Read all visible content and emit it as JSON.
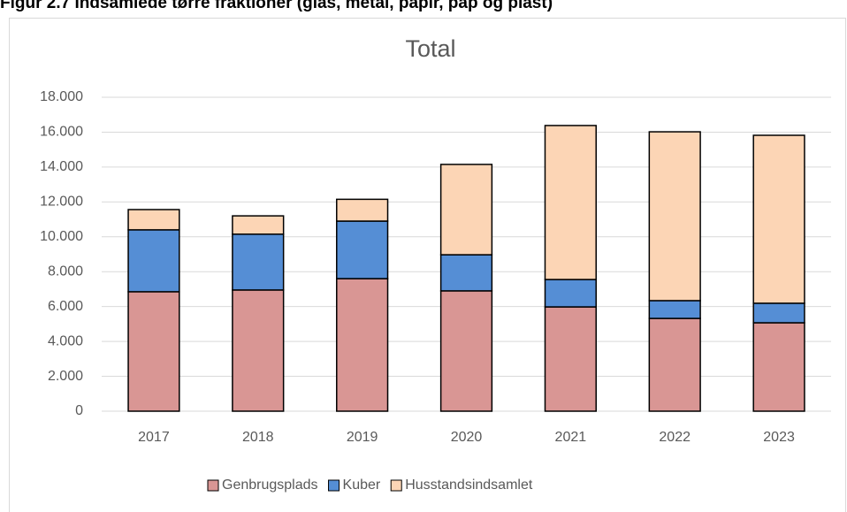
{
  "heading": "Figur 2.7 Indsamlede tørre fraktioner (glas, metal, papir, pap og plast)",
  "chart_data": {
    "type": "stacked_bar",
    "title": "Total",
    "categories": [
      "2017",
      "2018",
      "2019",
      "2020",
      "2021",
      "2022",
      "2023"
    ],
    "series": [
      {
        "name": "Genbrugsplads",
        "color": "#d99694",
        "values": [
          6850,
          6950,
          7600,
          6900,
          5980,
          5320,
          5070
        ]
      },
      {
        "name": "Kuber",
        "color": "#558ed5",
        "values": [
          3550,
          3200,
          3300,
          2070,
          1570,
          1020,
          1120
        ]
      },
      {
        "name": "Husstandsindsamlet",
        "color": "#fcd5b5",
        "values": [
          1160,
          1050,
          1250,
          5180,
          8830,
          9680,
          9630
        ]
      }
    ],
    "ylim": [
      0,
      18000
    ],
    "yticks": [
      0,
      {
        "value": 2000,
        "label": "2.000"
      },
      {
        "value": 4000,
        "label": "4.000"
      },
      {
        "value": 6000,
        "label": "6.000"
      },
      {
        "value": 8000,
        "label": "8.000"
      },
      {
        "value": 10000,
        "label": "10.000"
      },
      {
        "value": 12000,
        "label": "12.000"
      },
      {
        "value": 14000,
        "label": "14.000"
      },
      {
        "value": 16000,
        "label": "16.000"
      },
      {
        "value": 18000,
        "label": "18.000"
      }
    ],
    "grid": true,
    "legend": "bottom"
  }
}
